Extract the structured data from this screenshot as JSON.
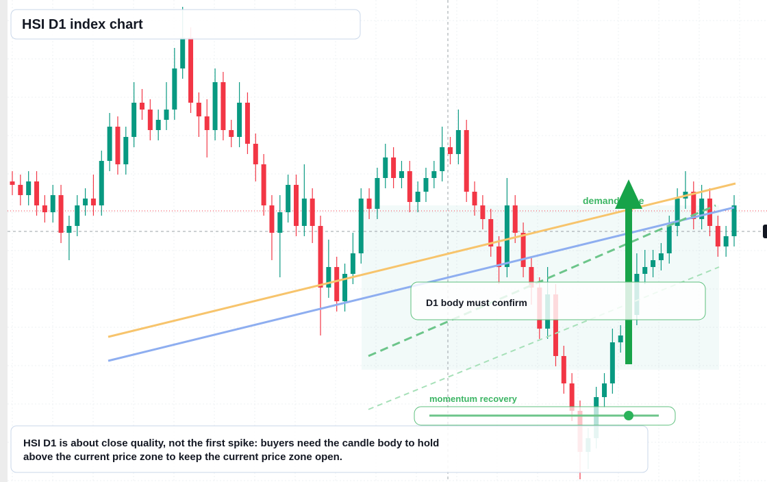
{
  "chart_data": {
    "type": "candlestick",
    "title": "HSI D1 index chart",
    "annotations": {
      "zone": "demand zone",
      "confirm": "D1 body must confirm",
      "momentum": "momentum recovery",
      "caption": [
        "HSI D1 is about close quality, not the first spike: buyers need the candle body to hold",
        "above the current price zone to keep the current price zone open."
      ]
    },
    "up_color": "#089981",
    "down_color": "#f23645",
    "ylim": [
      0,
      70.4
    ],
    "candles": [
      [
        43.9,
        45.4,
        41.9,
        43.4
      ],
      [
        43.4,
        44.9,
        40.4,
        41.9
      ],
      [
        41.9,
        45.4,
        40.4,
        43.9
      ],
      [
        43.9,
        45.4,
        38.9,
        40.4
      ],
      [
        40.4,
        41.9,
        37.9,
        39.4
      ],
      [
        39.4,
        43.4,
        37.9,
        41.9
      ],
      [
        41.9,
        43.4,
        34.9,
        36.4
      ],
      [
        36.4,
        38.9,
        32.4,
        37.4
      ],
      [
        37.4,
        41.9,
        35.9,
        40.4
      ],
      [
        40.4,
        42.9,
        38.9,
        41.4
      ],
      [
        41.4,
        44.9,
        38.9,
        40.4
      ],
      [
        40.4,
        48.4,
        38.9,
        46.9
      ],
      [
        46.9,
        53.9,
        45.4,
        51.9
      ],
      [
        51.9,
        53.4,
        44.9,
        46.4
      ],
      [
        46.4,
        51.9,
        44.9,
        50.4
      ],
      [
        50.4,
        58.4,
        48.9,
        55.4
      ],
      [
        55.4,
        57.4,
        52.9,
        54.4
      ],
      [
        54.4,
        55.9,
        49.9,
        51.4
      ],
      [
        51.4,
        54.4,
        49.9,
        52.9
      ],
      [
        52.9,
        58.4,
        51.4,
        54.4
      ],
      [
        54.4,
        63.4,
        52.9,
        60.4
      ],
      [
        60.4,
        69.4,
        58.9,
        64.9
      ],
      [
        64.9,
        66.4,
        53.9,
        55.4
      ],
      [
        55.4,
        56.9,
        50.4,
        53.4
      ],
      [
        53.4,
        55.9,
        47.4,
        51.4
      ],
      [
        51.4,
        60.4,
        49.9,
        58.4
      ],
      [
        58.4,
        59.9,
        49.9,
        51.4
      ],
      [
        51.4,
        52.9,
        48.9,
        50.4
      ],
      [
        50.4,
        58.4,
        48.9,
        55.4
      ],
      [
        55.4,
        56.9,
        47.9,
        49.4
      ],
      [
        49.4,
        50.9,
        43.9,
        46.4
      ],
      [
        46.4,
        47.9,
        38.9,
        40.4
      ],
      [
        40.4,
        41.9,
        32.4,
        36.4
      ],
      [
        36.4,
        41.9,
        29.9,
        39.4
      ],
      [
        39.4,
        44.9,
        37.9,
        43.4
      ],
      [
        43.4,
        44.9,
        35.9,
        37.4
      ],
      [
        37.4,
        46.4,
        35.9,
        41.4
      ],
      [
        41.4,
        42.9,
        34.9,
        37.4
      ],
      [
        37.4,
        38.9,
        21.4,
        28.4
      ],
      [
        28.4,
        35.4,
        26.9,
        31.4
      ],
      [
        31.4,
        32.9,
        24.9,
        26.4
      ],
      [
        26.4,
        31.9,
        24.9,
        30.4
      ],
      [
        30.4,
        36.4,
        28.9,
        33.4
      ],
      [
        33.4,
        42.9,
        31.9,
        41.4
      ],
      [
        41.4,
        42.9,
        38.4,
        39.9
      ],
      [
        39.9,
        45.9,
        38.4,
        44.4
      ],
      [
        44.4,
        49.4,
        42.9,
        47.4
      ],
      [
        47.4,
        48.9,
        42.9,
        44.4
      ],
      [
        44.4,
        46.9,
        42.9,
        45.4
      ],
      [
        45.4,
        46.9,
        39.4,
        40.9
      ],
      [
        40.9,
        43.9,
        39.4,
        42.4
      ],
      [
        42.4,
        45.9,
        40.9,
        44.4
      ],
      [
        44.4,
        46.9,
        42.9,
        45.4
      ],
      [
        45.4,
        51.9,
        43.9,
        48.9
      ],
      [
        48.9,
        50.4,
        46.4,
        47.9
      ],
      [
        47.9,
        54.4,
        46.4,
        51.4
      ],
      [
        51.4,
        52.9,
        40.9,
        42.4
      ],
      [
        42.4,
        43.9,
        38.9,
        40.4
      ],
      [
        40.4,
        41.9,
        36.9,
        38.4
      ],
      [
        38.4,
        39.9,
        32.9,
        34.4
      ],
      [
        34.4,
        35.9,
        28.9,
        31.4
      ],
      [
        31.4,
        44.4,
        29.9,
        40.4
      ],
      [
        40.4,
        41.9,
        34.9,
        36.4
      ],
      [
        36.4,
        37.9,
        29.9,
        31.4
      ],
      [
        31.4,
        32.9,
        25.9,
        28.4
      ],
      [
        28.4,
        29.9,
        20.9,
        22.4
      ],
      [
        22.4,
        31.4,
        20.9,
        27.4
      ],
      [
        27.4,
        28.9,
        16.9,
        18.4
      ],
      [
        18.4,
        19.9,
        12.9,
        14.4
      ],
      [
        14.4,
        15.9,
        8.9,
        10.4
      ],
      [
        10.4,
        11.9,
        0.4,
        4.4
      ],
      [
        4.4,
        7.9,
        1.9,
        6.4
      ],
      [
        6.4,
        13.9,
        4.9,
        12.4
      ],
      [
        12.4,
        15.9,
        10.9,
        14.4
      ],
      [
        14.4,
        22.4,
        12.9,
        20.4
      ],
      [
        20.4,
        22.9,
        18.9,
        21.4
      ],
      [
        21.4,
        25.9,
        19.9,
        24.4
      ],
      [
        24.4,
        33.4,
        22.9,
        30.4
      ],
      [
        30.4,
        33.9,
        28.9,
        31.4
      ],
      [
        31.4,
        33.9,
        29.9,
        32.4
      ],
      [
        32.4,
        34.9,
        30.9,
        33.4
      ],
      [
        33.4,
        38.9,
        31.9,
        37.4
      ],
      [
        37.4,
        42.9,
        35.9,
        41.4
      ],
      [
        41.4,
        45.4,
        39.9,
        42.4
      ],
      [
        42.4,
        43.9,
        36.9,
        38.4
      ],
      [
        38.4,
        43.4,
        36.9,
        41.4
      ],
      [
        41.4,
        42.9,
        35.9,
        37.4
      ],
      [
        37.4,
        38.9,
        32.9,
        34.4
      ],
      [
        34.4,
        37.4,
        32.9,
        35.9
      ],
      [
        35.9,
        41.9,
        34.4,
        40.4
      ]
    ]
  }
}
